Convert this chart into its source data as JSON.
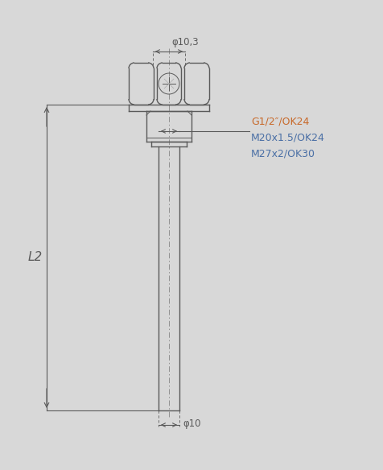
{
  "bg_color": "#d8d8d8",
  "line_color": "#5a5a5a",
  "text_orange": "#c8692a",
  "text_blue": "#4a6fa5",
  "thread_labels": [
    "G1/2″/OK24",
    "M20x1.5/OK24",
    "M27x2/OK30"
  ],
  "dim_phi_top": "φ10,3",
  "dim_phi_bot": "φ10",
  "dim_L2": "L2",
  "fig_width": 4.77,
  "fig_height": 5.84,
  "dpi": 100
}
